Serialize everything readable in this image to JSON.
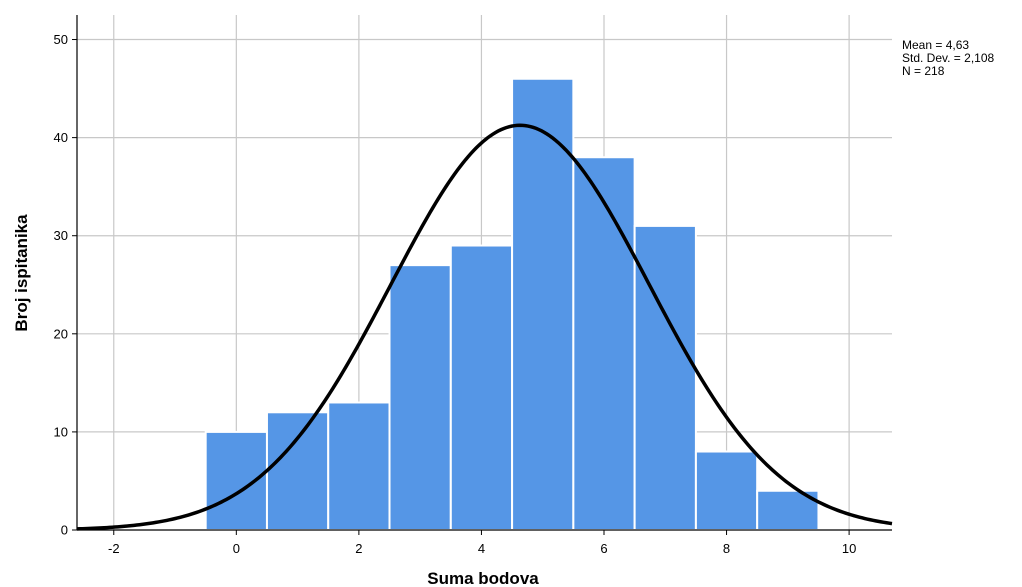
{
  "chart_data": {
    "type": "bar",
    "subtype": "histogram",
    "bins": [
      {
        "x": 0,
        "value": 10
      },
      {
        "x": 1,
        "value": 12
      },
      {
        "x": 2,
        "value": 13
      },
      {
        "x": 3,
        "value": 27
      },
      {
        "x": 4,
        "value": 29
      },
      {
        "x": 5,
        "value": 46
      },
      {
        "x": 6,
        "value": 38
      },
      {
        "x": 7,
        "value": 31
      },
      {
        "x": 8,
        "value": 8
      },
      {
        "x": 9,
        "value": 4
      }
    ],
    "bin_width": 1,
    "normal_curve": {
      "mean": 4.63,
      "std_dev": 2.108,
      "n": 218
    },
    "xlabel": "Suma bodova",
    "ylabel": "Broj ispitanika",
    "xlim": [
      -2.6,
      10.7
    ],
    "ylim": [
      0,
      52.5
    ],
    "xticks": [
      -2,
      0,
      2,
      4,
      6,
      8,
      10
    ],
    "yticks": [
      0,
      10,
      20,
      30,
      40,
      50
    ],
    "xtick_labels": [
      "-2",
      "0",
      "2",
      "4",
      "6",
      "8",
      "10"
    ],
    "ytick_labels": [
      "0",
      "10",
      "20",
      "30",
      "40",
      "50"
    ],
    "grid": true,
    "bar_color": "#5596e6",
    "curve_color": "#000000",
    "stats": [
      "Mean = 4,63",
      "Std. Dev. = 2,108",
      "N = 218"
    ]
  }
}
